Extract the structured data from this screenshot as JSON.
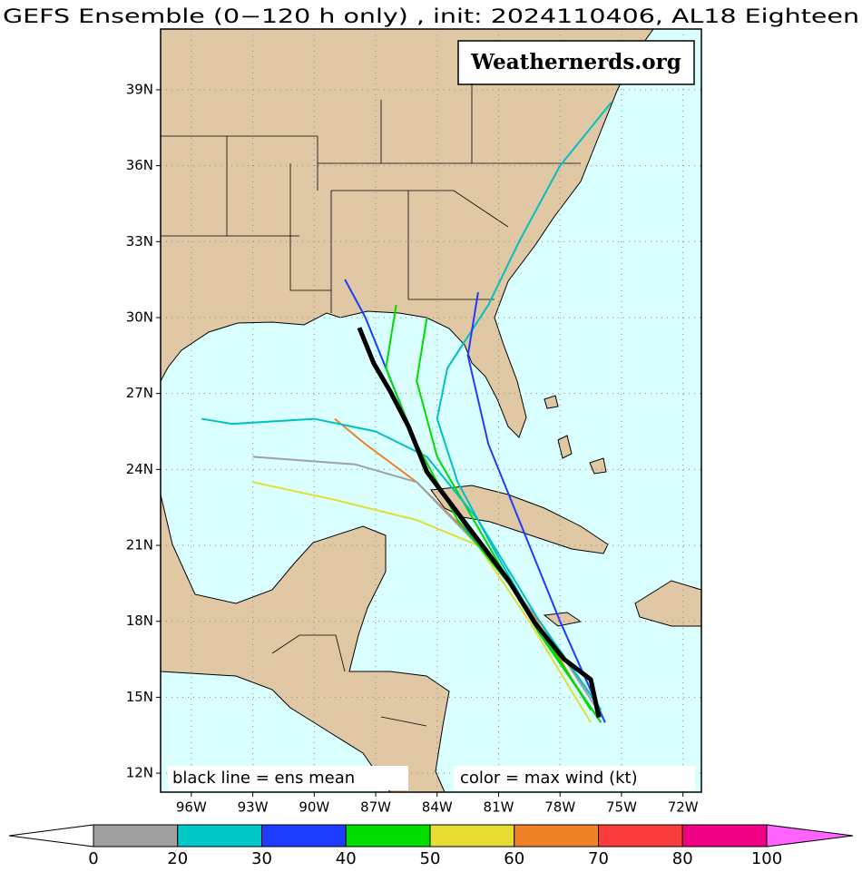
{
  "chart_data": {
    "type": "map",
    "title": "GEFS Ensemble (0−120 h only) , init: 2024110406, AL18 Eighteen",
    "annotations": [
      "Weathernerds.org",
      "black line = ens mean",
      "color = max wind (kt)"
    ],
    "xlim": [
      -97.5,
      -71.1
    ],
    "ylim": [
      11.25,
      41.4
    ],
    "xticks": [
      {
        "value": -96,
        "label": "96W"
      },
      {
        "value": -93,
        "label": "93W"
      },
      {
        "value": -90,
        "label": "90W"
      },
      {
        "value": -87,
        "label": "87W"
      },
      {
        "value": -84,
        "label": "84W"
      },
      {
        "value": -81,
        "label": "81W"
      },
      {
        "value": -78,
        "label": "78W"
      },
      {
        "value": -75,
        "label": "75W"
      },
      {
        "value": -72,
        "label": "72W"
      }
    ],
    "yticks": [
      {
        "value": 12,
        "label": "12N"
      },
      {
        "value": 15,
        "label": "15N"
      },
      {
        "value": 18,
        "label": "18N"
      },
      {
        "value": 21,
        "label": "21N"
      },
      {
        "value": 24,
        "label": "24N"
      },
      {
        "value": 27,
        "label": "27N"
      },
      {
        "value": 30,
        "label": "30N"
      },
      {
        "value": 33,
        "label": "33N"
      },
      {
        "value": 36,
        "label": "36N"
      },
      {
        "value": 39,
        "label": "39N"
      }
    ],
    "grid": true,
    "series": [
      {
        "color": "#00c0c0",
        "x": [
          -76.0,
          -78.5,
          -81.0,
          -83.0,
          -84.0,
          -83.5,
          -81.5,
          -80.0,
          -78.0,
          -75.5
        ],
        "values": [
          14.0,
          17.0,
          20.5,
          23.5,
          26.0,
          28.0,
          30.5,
          33.0,
          36.0,
          38.5
        ]
      },
      {
        "color": "#1e3cff",
        "x": [
          -76.0,
          -79.0,
          -82.0,
          -84.5,
          -86.0,
          -87.5,
          -88.5
        ],
        "values": [
          14.5,
          18.0,
          21.0,
          24.0,
          27.0,
          30.0,
          31.5
        ]
      },
      {
        "color": "#00dc00",
        "x": [
          -76.0,
          -79.0,
          -81.5,
          -84.0,
          -85.0,
          -84.5
        ],
        "values": [
          14.0,
          17.5,
          21.0,
          24.5,
          27.5,
          30.0
        ]
      },
      {
        "color": "#e6dc32",
        "x": [
          -76.5,
          -79.5,
          -82.0,
          -85.0,
          -89.0,
          -93.0
        ],
        "values": [
          14.0,
          18.0,
          21.0,
          22.0,
          22.8,
          23.5
        ]
      },
      {
        "color": "#f08228",
        "x": [
          -76.5,
          -79.5,
          -82.5,
          -85.0,
          -87.5,
          -89.0
        ],
        "values": [
          14.5,
          18.5,
          21.5,
          23.5,
          25.0,
          26.0
        ]
      },
      {
        "color": "#a0a0a0",
        "x": [
          -76.0,
          -79.0,
          -82.0,
          -85.0,
          -88.0,
          -93.0
        ],
        "values": [
          14.3,
          18.0,
          21.0,
          23.5,
          24.2,
          24.5
        ]
      },
      {
        "color": "#1e3cff",
        "x": [
          -75.8,
          -78.0,
          -80.0,
          -81.5,
          -82.5,
          -82.0
        ],
        "values": [
          14.0,
          18.0,
          22.0,
          25.0,
          28.5,
          31.0
        ]
      },
      {
        "color": "#00c0c0",
        "x": [
          -76.0,
          -79.0,
          -82.0,
          -84.5,
          -87.0,
          -90.0,
          -94.0,
          -95.5
        ],
        "values": [
          14.5,
          18.0,
          22.0,
          24.5,
          25.5,
          26.0,
          25.8,
          26.0
        ]
      },
      {
        "color": "#00dc00",
        "x": [
          -76.5,
          -80.0,
          -83.0,
          -85.0,
          -86.5,
          -86.0
        ],
        "values": [
          14.5,
          19.0,
          22.0,
          25.0,
          28.0,
          30.5
        ]
      },
      {
        "color": "#000000",
        "x": [
          -76.1,
          -76.5,
          -77.8,
          -79.2,
          -80.5,
          -81.8,
          -83.2,
          -84.5,
          -85.4,
          -86.3,
          -87.1,
          -87.8
        ],
        "values": [
          14.2,
          15.7,
          16.5,
          17.9,
          19.6,
          21.0,
          22.5,
          23.9,
          25.7,
          27.1,
          28.2,
          29.6
        ]
      }
    ],
    "colorbar": {
      "ticks": [
        0,
        20,
        30,
        40,
        50,
        60,
        70,
        80,
        100
      ],
      "colors": [
        "#ffffff",
        "#a0a0a0",
        "#00c8c8",
        "#1e3cff",
        "#00dc00",
        "#e6dc32",
        "#f08228",
        "#fa3c3c",
        "#f00082",
        "#ff64ff"
      ]
    }
  }
}
